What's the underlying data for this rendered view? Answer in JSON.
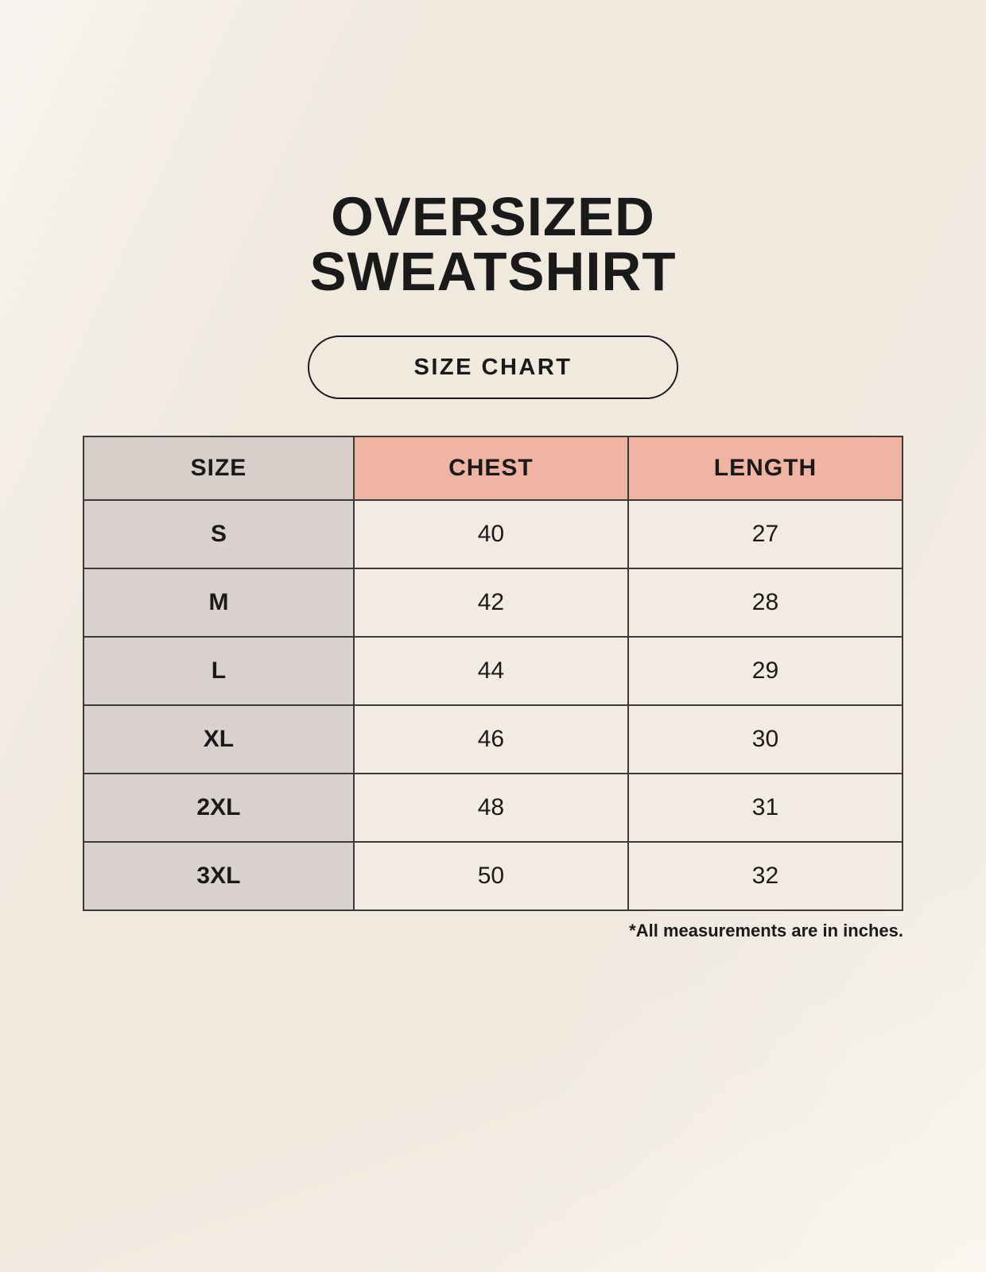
{
  "page": {
    "title_line1": "OVERSIZED",
    "title_line2": "SWEATSHIRT",
    "badge_label": "SIZE CHART",
    "footnote": "*All measurements are in inches."
  },
  "chart_data": {
    "type": "table",
    "title": "Oversized Sweatshirt Size Chart",
    "columns": [
      "SIZE",
      "CHEST",
      "LENGTH"
    ],
    "rows": [
      [
        "S",
        "40",
        "27"
      ],
      [
        "M",
        "42",
        "28"
      ],
      [
        "L",
        "44",
        "29"
      ],
      [
        "XL",
        "46",
        "30"
      ],
      [
        "2XL",
        "48",
        "31"
      ],
      [
        "3XL",
        "50",
        "32"
      ]
    ],
    "units": "inches"
  },
  "colors": {
    "background": "#f6f1e8",
    "header_size_bg": "#d6cec9",
    "header_measure_bg": "#f0b5a2",
    "size_col_bg": "#d8d1cd",
    "data_cell_bg": "#f1ebe1",
    "border": "#3a3a3a",
    "text": "#1a1a1a"
  }
}
